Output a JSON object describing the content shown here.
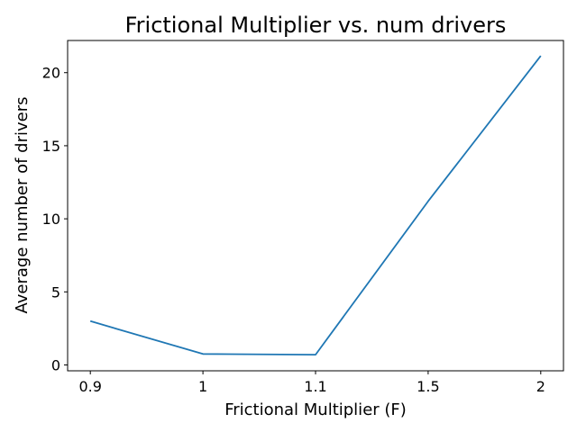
{
  "chart_data": {
    "type": "line",
    "title": "Frictional Multiplier vs. num drivers",
    "xlabel": "Frictional Multiplier (F)",
    "ylabel": "Average number of drivers",
    "categories": [
      "0.9",
      "1",
      "1.1",
      "1.5",
      "2"
    ],
    "series": [
      {
        "values": [
          3.0,
          0.75,
          0.7,
          11.2,
          21.15
        ]
      }
    ],
    "ylim": [
      -0.4,
      22.2
    ],
    "yticks": [
      0,
      5,
      10,
      15,
      20
    ],
    "grid": false,
    "legend": "none",
    "colors": {
      "line": "#1f77b4"
    }
  }
}
